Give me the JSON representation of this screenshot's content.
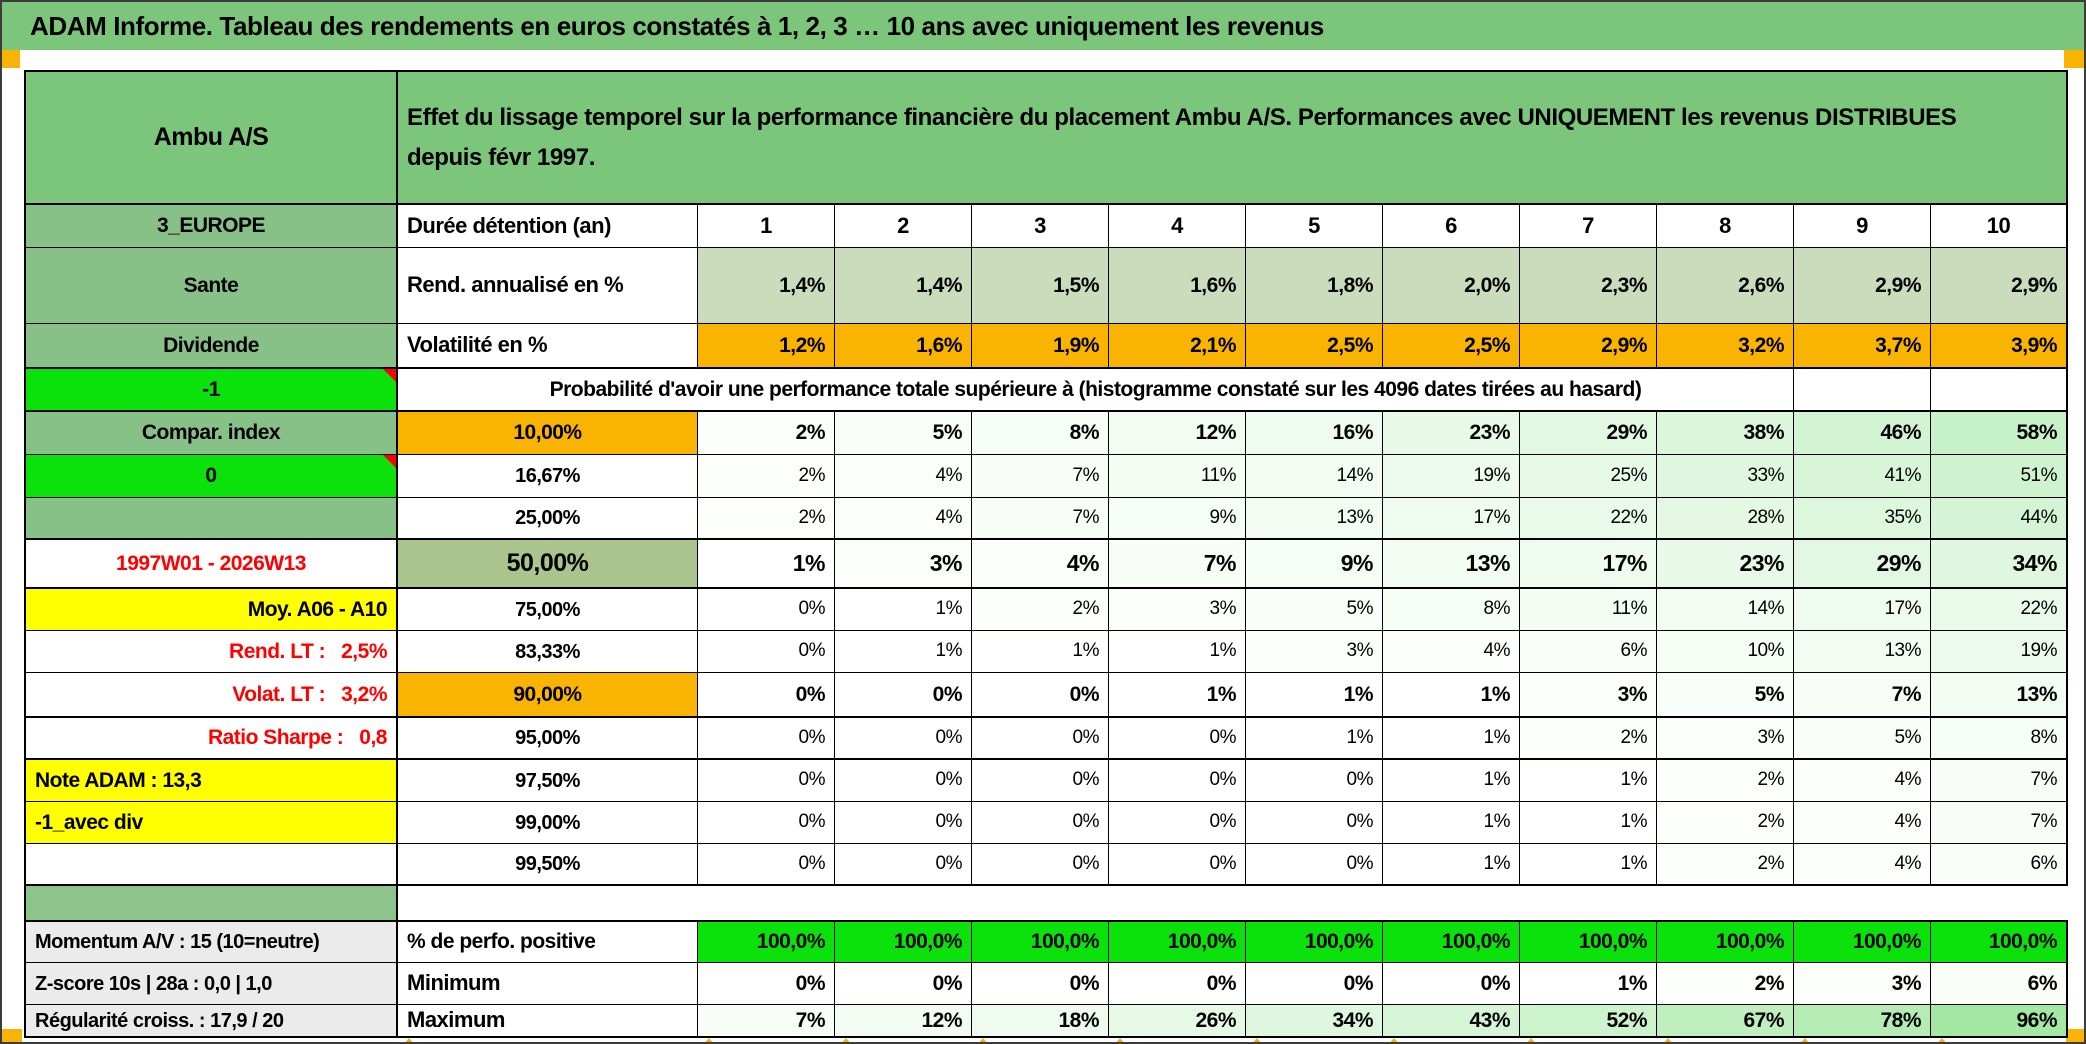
{
  "banner": {
    "title": "ADAM Informe. Tableau des rendements en euros constatés à 1, 2, 3 … 10 ans avec uniquement les revenus"
  },
  "colors": {
    "bannerGreen": "#7CC67C",
    "colGreen": "#87C187",
    "gapGreen": "#8CC48C",
    "bright": "#0BE20B",
    "orange": "#F8B400",
    "yellow": "#FFFF00",
    "sage": "#A9C48D",
    "pale": "#CBDCBC",
    "gray": "#EBEBEB",
    "red": "#FF0000",
    "white": "#FFFFFF",
    "gradient_max_green": "#9FE79F",
    "marker_orange": "#F8B400"
  },
  "sheet": {
    "years": [
      "1",
      "2",
      "3",
      "4",
      "5",
      "6",
      "7",
      "8",
      "9",
      "10"
    ],
    "rows": [
      {
        "id": "header",
        "type": "title",
        "tb": true,
        "a": {
          "text": "Ambu A/S",
          "bg": "bannerGreen",
          "align": "center",
          "size": 25
        },
        "m": {
          "text": "Effet du lissage temporel sur la performance financière du placement Ambu A/S. Performances avec UNIQUEMENT les revenus DISTRIBUES depuis févr 1997.",
          "bg": "bannerGreen",
          "align": "left",
          "size": 24
        }
      },
      {
        "id": "years",
        "type": "years",
        "a": {
          "text": "3_EUROPE",
          "bg": "colGreen",
          "align": "center",
          "size": 21
        },
        "b": {
          "text": "Durée détention (an)",
          "bg": "white",
          "align": "left",
          "size": 22
        }
      },
      {
        "id": "rend",
        "type": "data",
        "a": {
          "text": "Sante",
          "bg": "colGreen",
          "align": "center",
          "size": 21
        },
        "b": {
          "text": "Rend. annualisé en %",
          "bg": "white",
          "align": "left",
          "size": 22
        },
        "cells": {
          "values": [
            "1,4%",
            "1,4%",
            "1,5%",
            "1,6%",
            "1,8%",
            "2,0%",
            "2,3%",
            "2,6%",
            "2,9%",
            "2,9%"
          ],
          "bg": "pale",
          "weight": 700,
          "size": 21
        }
      },
      {
        "id": "volat",
        "type": "data",
        "tb": true,
        "a": {
          "text": "Dividende",
          "bg": "colGreen",
          "align": "center",
          "size": 21
        },
        "b": {
          "text": "Volatilité en %",
          "bg": "white",
          "align": "left",
          "size": 22
        },
        "cells": {
          "values": [
            "1,2%",
            "1,6%",
            "1,9%",
            "2,1%",
            "2,5%",
            "2,5%",
            "2,9%",
            "3,2%",
            "3,7%",
            "3,9%"
          ],
          "bg": "orange",
          "weight": 700,
          "size": 21
        }
      },
      {
        "id": "proba",
        "type": "proba",
        "tb": true,
        "a": {
          "text": "-1",
          "bg": "bright",
          "align": "center",
          "size": 21,
          "tri": true
        },
        "m": {
          "text": "Probabilité d'avoir une performance totale supérieure à (histogramme constaté sur les 4096 dates tirées au hasard)",
          "bg": "white",
          "align": "center",
          "size": 21
        }
      },
      {
        "id": "p10",
        "type": "data",
        "a": {
          "text": "Compar. index",
          "bg": "colGreen",
          "align": "center",
          "size": 21
        },
        "b": {
          "text": "10,00%",
          "bg": "orange",
          "align": "center",
          "size": 21
        },
        "cells": {
          "values": [
            2,
            5,
            8,
            12,
            16,
            23,
            29,
            38,
            46,
            58
          ],
          "bg": "grad",
          "weight": 700,
          "size": 21
        }
      },
      {
        "id": "p1667",
        "type": "data",
        "a": {
          "text": "0",
          "bg": "bright",
          "align": "center",
          "size": 21,
          "tri": true
        },
        "b": {
          "text": "16,67%",
          "bg": "white",
          "align": "center",
          "size": 20
        },
        "cells": {
          "values": [
            2,
            4,
            7,
            11,
            14,
            19,
            25,
            33,
            41,
            51
          ],
          "bg": "grad",
          "weight": 400,
          "size": 19
        }
      },
      {
        "id": "p25",
        "type": "data",
        "tb": true,
        "a": {
          "text": "",
          "bg": "colGreen",
          "align": "center",
          "size": 21
        },
        "b": {
          "text": "25,00%",
          "bg": "white",
          "align": "center",
          "size": 20
        },
        "cells": {
          "values": [
            2,
            4,
            7,
            9,
            13,
            17,
            22,
            28,
            35,
            44
          ],
          "bg": "grad",
          "weight": 400,
          "size": 19
        }
      },
      {
        "id": "p50",
        "type": "data",
        "tb": true,
        "a": {
          "text": "1997W01 - 2026W13",
          "bg": "white",
          "align": "center",
          "size": 21,
          "color": "red"
        },
        "b": {
          "text": "50,00%",
          "bg": "sage",
          "align": "center",
          "size": 25
        },
        "cells": {
          "values": [
            1,
            3,
            4,
            7,
            9,
            13,
            17,
            23,
            29,
            34
          ],
          "bg": "grad",
          "weight": 700,
          "size": 23
        }
      },
      {
        "id": "p75",
        "type": "data",
        "a": {
          "text": "Moy. A06 - A10",
          "bg": "yellow",
          "align": "right",
          "size": 21
        },
        "b": {
          "text": "75,00%",
          "bg": "white",
          "align": "center",
          "size": 20
        },
        "cells": {
          "values": [
            0,
            1,
            2,
            3,
            5,
            8,
            11,
            14,
            17,
            22
          ],
          "bg": "grad",
          "weight": 400,
          "size": 19
        }
      },
      {
        "id": "p8333",
        "type": "data",
        "a": {
          "text": "Rend. LT :   2,5%",
          "bg": "white",
          "align": "right",
          "size": 21,
          "color": "red"
        },
        "b": {
          "text": "83,33%",
          "bg": "white",
          "align": "center",
          "size": 20
        },
        "cells": {
          "values": [
            0,
            1,
            1,
            1,
            3,
            4,
            6,
            10,
            13,
            19
          ],
          "bg": "grad",
          "weight": 400,
          "size": 19
        }
      },
      {
        "id": "p90",
        "type": "data",
        "tb": true,
        "a": {
          "text": "Volat. LT :   3,2%",
          "bg": "white",
          "align": "right",
          "size": 21,
          "color": "red"
        },
        "b": {
          "text": "90,00%",
          "bg": "orange",
          "align": "center",
          "size": 21
        },
        "cells": {
          "values": [
            0,
            0,
            0,
            1,
            1,
            1,
            3,
            5,
            7,
            13
          ],
          "bg": "grad",
          "weight": 700,
          "size": 21
        }
      },
      {
        "id": "p95",
        "type": "data",
        "tb": true,
        "a": {
          "text": "Ratio Sharpe :   0,8",
          "bg": "white",
          "align": "right",
          "size": 21,
          "color": "red"
        },
        "b": {
          "text": "95,00%",
          "bg": "white",
          "align": "center",
          "size": 20
        },
        "cells": {
          "values": [
            0,
            0,
            0,
            0,
            1,
            1,
            2,
            3,
            5,
            8
          ],
          "bg": "grad",
          "weight": 400,
          "size": 19
        }
      },
      {
        "id": "p975",
        "type": "data",
        "a": {
          "text": "Note ADAM : 13,3",
          "bg": "yellow",
          "align": "left",
          "size": 21
        },
        "b": {
          "text": "97,50%",
          "bg": "white",
          "align": "center",
          "size": 20
        },
        "cells": {
          "values": [
            0,
            0,
            0,
            0,
            0,
            1,
            1,
            2,
            4,
            7
          ],
          "bg": "grad",
          "weight": 400,
          "size": 19
        }
      },
      {
        "id": "p99",
        "type": "data",
        "a": {
          "text": "-1_avec div",
          "bg": "yellow",
          "align": "left",
          "size": 21
        },
        "b": {
          "text": "99,00%",
          "bg": "white",
          "align": "center",
          "size": 20
        },
        "cells": {
          "values": [
            0,
            0,
            0,
            0,
            0,
            1,
            1,
            2,
            4,
            7
          ],
          "bg": "grad",
          "weight": 400,
          "size": 19
        }
      },
      {
        "id": "p995",
        "type": "data",
        "tb": true,
        "a": {
          "text": "",
          "bg": "white",
          "align": "center",
          "size": 21
        },
        "b": {
          "text": "99,50%",
          "bg": "white",
          "align": "center",
          "size": 20
        },
        "cells": {
          "values": [
            0,
            0,
            0,
            0,
            0,
            1,
            1,
            2,
            4,
            6
          ],
          "bg": "grad",
          "weight": 400,
          "size": 19
        }
      },
      {
        "id": "gap",
        "type": "gap",
        "a": {
          "bg": "gapGreen"
        }
      },
      {
        "id": "perfpos",
        "type": "data",
        "tt": true,
        "a": {
          "text": "Momentum A/V : 15 (10=neutre)",
          "bg": "gray",
          "align": "left",
          "size": 20
        },
        "b": {
          "text": "% de perfo. positive",
          "bg": "white",
          "align": "left",
          "size": 21
        },
        "cells": {
          "values": [
            "100,0%",
            "100,0%",
            "100,0%",
            "100,0%",
            "100,0%",
            "100,0%",
            "100,0%",
            "100,0%",
            "100,0%",
            "100,0%"
          ],
          "bg": "bright",
          "weight": 700,
          "size": 21
        }
      },
      {
        "id": "minimum",
        "type": "data",
        "a": {
          "text": "Z-score 10s | 28a : 0,0 | 1,0",
          "bg": "gray",
          "align": "left",
          "size": 20
        },
        "b": {
          "text": "Minimum",
          "bg": "white",
          "align": "left",
          "size": 22
        },
        "cells": {
          "values": [
            0,
            0,
            0,
            0,
            0,
            0,
            1,
            2,
            3,
            6
          ],
          "bg": "grad",
          "weight": 700,
          "size": 21
        }
      },
      {
        "id": "maximum",
        "type": "data",
        "tb": true,
        "a": {
          "text": "Régularité croiss. : 17,9 / 20",
          "bg": "gray",
          "align": "left",
          "size": 20
        },
        "b": {
          "text": "Maximum",
          "bg": "white",
          "align": "left",
          "size": 22
        },
        "cells": {
          "values": [
            7,
            12,
            18,
            26,
            34,
            43,
            52,
            67,
            78,
            96
          ],
          "bg": "grad",
          "weight": 700,
          "size": 21
        }
      }
    ]
  }
}
